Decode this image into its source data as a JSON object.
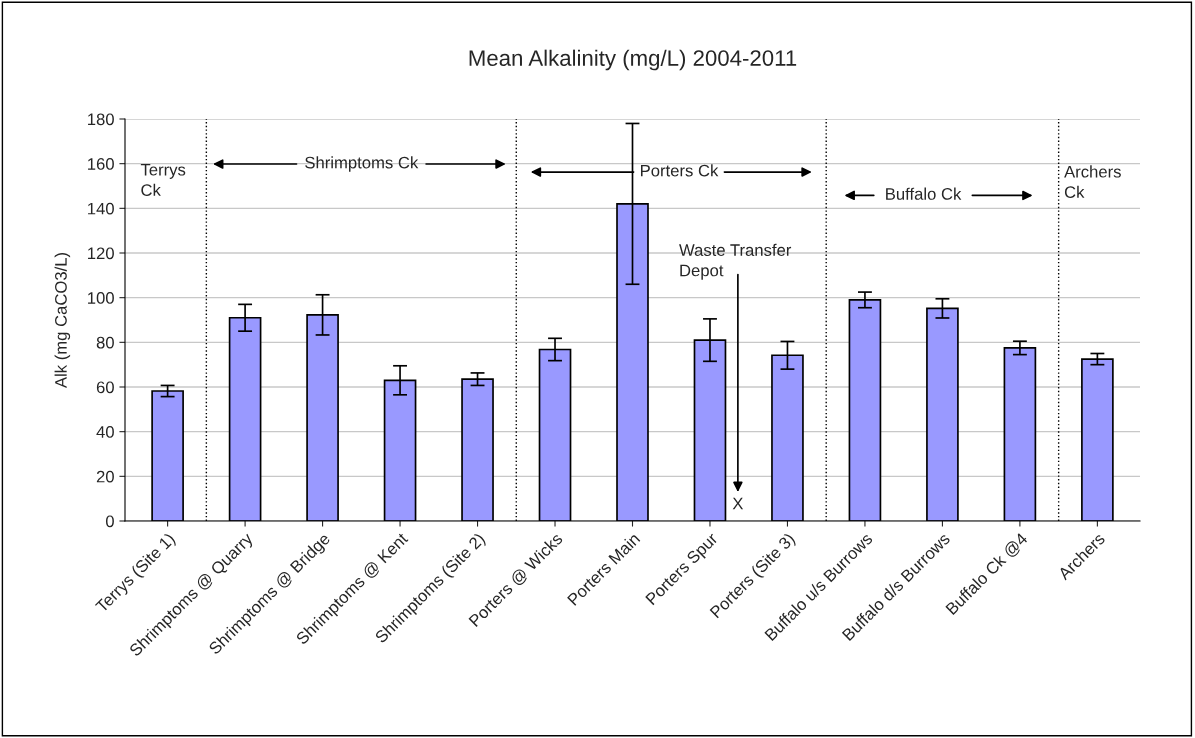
{
  "chart_data": {
    "type": "bar",
    "title": "Mean Alkalinity (mg/L) 2004-2011",
    "ylabel": "Alk (mg CaCO3/L)",
    "categories": [
      "Terrys (Site 1)",
      "Shrimptoms @ Quarry",
      "Shrimptoms @ Bridge",
      "Shrimptoms @ Kent",
      "Shrimptoms (Site 2)",
      "Porters @ Wicks",
      "Porters Main",
      "Porters Spur",
      "Porters (Site 3)",
      "Buffalo u/s Burrows",
      "Buffalo d/s Burrows",
      "Buffalo Ck @4",
      "Archers"
    ],
    "values": [
      58.2,
      91,
      92.3,
      63,
      63.5,
      76.8,
      142,
      81,
      74.2,
      99,
      95.2,
      77.5,
      72.5
    ],
    "errors": [
      2.5,
      6,
      9,
      6.5,
      2.8,
      5,
      36,
      9.5,
      6.2,
      3.5,
      4.3,
      3,
      2.5
    ],
    "color": "#9999ff",
    "ylim": [
      0,
      180
    ],
    "yticks": [
      0,
      20,
      40,
      60,
      80,
      100,
      120,
      140,
      160,
      180
    ],
    "grid": "y",
    "annotations": [
      "Terrys\nCk",
      "Shrimptoms Ck",
      "Porters Ck",
      "Buffalo Ck",
      "Archers\nCk",
      "Waste Transfer\nDepot",
      "X"
    ]
  }
}
